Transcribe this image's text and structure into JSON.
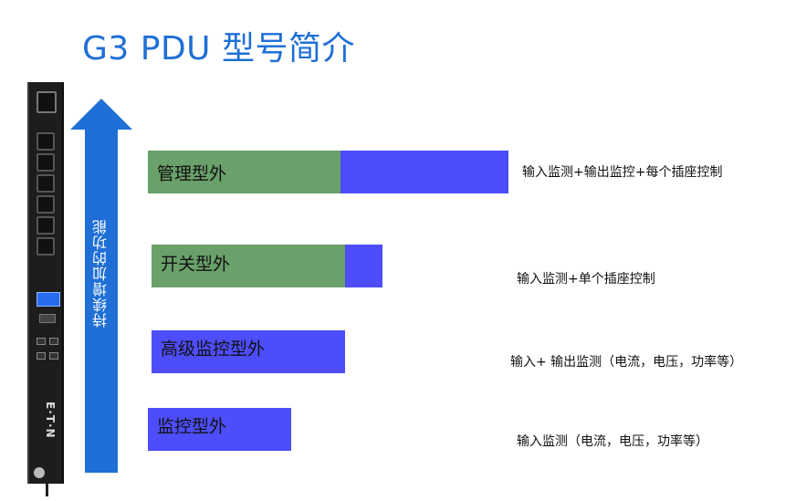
{
  "title": "G3 PDU 型号简介",
  "device": {
    "brand": "E·T·N"
  },
  "arrow": {
    "label": "持续增加的功能"
  },
  "colors": {
    "accent": "#1f6fd6",
    "green": "#6aa06a",
    "blue": "#4d4dfb"
  },
  "tiers": [
    {
      "label": "管理型外",
      "description": "输入监测+输出监控+每个插座控制"
    },
    {
      "label": "开关型外",
      "description": "输入监测+单个插座控制"
    },
    {
      "label": "高级监控型外",
      "description": "输入+ 输出监测（电流，电压，功率等）"
    },
    {
      "label": "监控型外",
      "description": "输入监测（电流，电压，功率等）"
    }
  ]
}
